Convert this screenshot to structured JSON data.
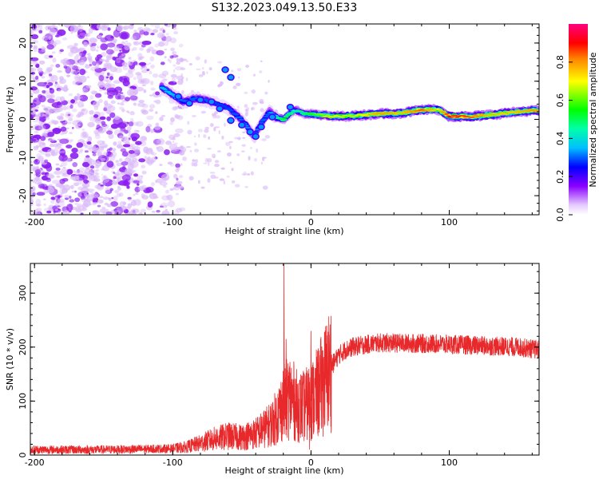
{
  "title": "S132.2023.049.13.50.E33",
  "colors": {
    "snr_line": "#e8292b",
    "noise_purple": "#8a1cf0",
    "noise_light": "#d9b8f8"
  },
  "chart_data": [
    {
      "type": "heatmap",
      "xlabel": "Height of straight line (km)",
      "ylabel": "Frequency (Hz)",
      "xlim": [
        -203,
        165
      ],
      "ylim": [
        -25,
        25
      ],
      "x_ticks": [
        {
          "value": -200,
          "label": "-200"
        },
        {
          "value": -100,
          "label": "-100"
        },
        {
          "value": 0,
          "label": "0"
        },
        {
          "value": 100,
          "label": "100"
        }
      ],
      "y_ticks": [
        {
          "value": -20,
          "label": "-20"
        },
        {
          "value": -10,
          "label": "-10"
        },
        {
          "value": 0,
          "label": "0"
        },
        {
          "value": 10,
          "label": "10"
        },
        {
          "value": 20,
          "label": "20"
        }
      ],
      "colorbar": {
        "label": "Normalized spectral amplitude",
        "range": [
          0.0,
          1.0
        ],
        "ticks": [
          {
            "value": 0.0,
            "label": "0.0"
          },
          {
            "value": 0.2,
            "label": "0.2"
          },
          {
            "value": 0.4,
            "label": "0.4"
          },
          {
            "value": 0.6,
            "label": "0.6"
          },
          {
            "value": 0.8,
            "label": "0.8"
          }
        ],
        "stops": [
          {
            "value": 0.0,
            "color": "#ffffff"
          },
          {
            "value": 0.05,
            "color": "#e6ccff"
          },
          {
            "value": 0.15,
            "color": "#8a00ff"
          },
          {
            "value": 0.25,
            "color": "#0000ff"
          },
          {
            "value": 0.35,
            "color": "#00bfff"
          },
          {
            "value": 0.45,
            "color": "#00ffaa"
          },
          {
            "value": 0.55,
            "color": "#00ff00"
          },
          {
            "value": 0.7,
            "color": "#ffff00"
          },
          {
            "value": 0.82,
            "color": "#ff8000"
          },
          {
            "value": 0.9,
            "color": "#ff0000"
          },
          {
            "value": 1.0,
            "color": "#ff0080"
          }
        ]
      },
      "ridge": [
        {
          "x": -108,
          "y": 8.5,
          "a": 0.35
        },
        {
          "x": -100,
          "y": 6.5,
          "a": 0.35
        },
        {
          "x": -92,
          "y": 4.5,
          "a": 0.3
        },
        {
          "x": -84,
          "y": 5.5,
          "a": 0.3
        },
        {
          "x": -76,
          "y": 5.0,
          "a": 0.3
        },
        {
          "x": -68,
          "y": 4.0,
          "a": 0.28
        },
        {
          "x": -60,
          "y": 3.0,
          "a": 0.28
        },
        {
          "x": -52,
          "y": 0.5,
          "a": 0.3
        },
        {
          "x": -46,
          "y": -2.0,
          "a": 0.32
        },
        {
          "x": -41,
          "y": -4.5,
          "a": 0.35
        },
        {
          "x": -36,
          "y": -1.0,
          "a": 0.3
        },
        {
          "x": -30,
          "y": 2.0,
          "a": 0.3
        },
        {
          "x": -25,
          "y": 0.5,
          "a": 0.45
        },
        {
          "x": -20,
          "y": 0.0,
          "a": 0.55
        },
        {
          "x": -12,
          "y": 2.5,
          "a": 0.45
        },
        {
          "x": -5,
          "y": 1.5,
          "a": 0.5
        },
        {
          "x": 5,
          "y": 1.2,
          "a": 0.6
        },
        {
          "x": 15,
          "y": 0.8,
          "a": 0.7
        },
        {
          "x": 30,
          "y": 0.9,
          "a": 0.65
        },
        {
          "x": 50,
          "y": 1.5,
          "a": 0.8
        },
        {
          "x": 65,
          "y": 1.6,
          "a": 0.75
        },
        {
          "x": 80,
          "y": 2.5,
          "a": 0.85
        },
        {
          "x": 92,
          "y": 2.6,
          "a": 0.7
        },
        {
          "x": 100,
          "y": 0.8,
          "a": 0.9
        },
        {
          "x": 115,
          "y": 0.7,
          "a": 0.85
        },
        {
          "x": 130,
          "y": 1.2,
          "a": 0.75
        },
        {
          "x": 145,
          "y": 1.8,
          "a": 0.75
        },
        {
          "x": 160,
          "y": 2.3,
          "a": 0.8
        }
      ]
    },
    {
      "type": "line",
      "xlabel": "Height of straight line (km)",
      "ylabel": "SNR (10 * v/v)",
      "xlim": [
        -203,
        165
      ],
      "ylim": [
        0,
        355
      ],
      "x_ticks": [
        {
          "value": -200,
          "label": "-200"
        },
        {
          "value": -100,
          "label": "-100"
        },
        {
          "value": 0,
          "label": "0"
        },
        {
          "value": 100,
          "label": "100"
        }
      ],
      "y_ticks": [
        {
          "value": 0,
          "label": "0"
        },
        {
          "value": 100,
          "label": "100"
        },
        {
          "value": 200,
          "label": "200"
        },
        {
          "value": 300,
          "label": "300"
        }
      ],
      "envelope": [
        {
          "x": -203,
          "y": 10
        },
        {
          "x": -150,
          "y": 10
        },
        {
          "x": -100,
          "y": 12
        },
        {
          "x": -90,
          "y": 15
        },
        {
          "x": -80,
          "y": 22
        },
        {
          "x": -70,
          "y": 30
        },
        {
          "x": -60,
          "y": 35
        },
        {
          "x": -50,
          "y": 33
        },
        {
          "x": -40,
          "y": 40
        },
        {
          "x": -30,
          "y": 55
        },
        {
          "x": -25,
          "y": 70
        },
        {
          "x": -20,
          "y": 95
        },
        {
          "x": -15,
          "y": 110
        },
        {
          "x": -10,
          "y": 90
        },
        {
          "x": -5,
          "y": 90
        },
        {
          "x": 0,
          "y": 100
        },
        {
          "x": 5,
          "y": 115
        },
        {
          "x": 10,
          "y": 140
        },
        {
          "x": 15,
          "y": 165
        },
        {
          "x": 20,
          "y": 185
        },
        {
          "x": 25,
          "y": 195
        },
        {
          "x": 30,
          "y": 200
        },
        {
          "x": 40,
          "y": 205
        },
        {
          "x": 50,
          "y": 208
        },
        {
          "x": 70,
          "y": 207
        },
        {
          "x": 90,
          "y": 206
        },
        {
          "x": 110,
          "y": 204
        },
        {
          "x": 130,
          "y": 202
        },
        {
          "x": 150,
          "y": 200
        },
        {
          "x": 165,
          "y": 195
        }
      ],
      "spikes": [
        {
          "x": -19.5,
          "y": 355
        },
        {
          "x": -18,
          "y": 215
        },
        {
          "x": 0,
          "y": 230
        },
        {
          "x": -1,
          "y": 10
        }
      ]
    }
  ]
}
